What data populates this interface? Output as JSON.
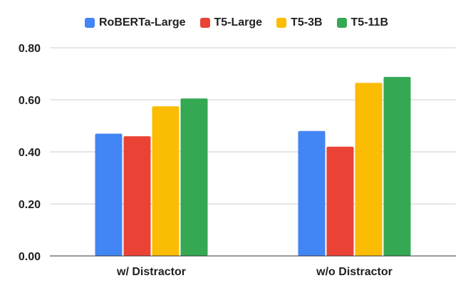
{
  "chart_data": {
    "type": "bar",
    "title": "",
    "xlabel": "",
    "ylabel": "",
    "categories": [
      "w/ Distractor",
      "w/o Distractor"
    ],
    "series": [
      {
        "name": "RoBERTa-Large",
        "color": "#4285f4",
        "values": [
          0.47,
          0.48
        ]
      },
      {
        "name": "T5-Large",
        "color": "#ea4335",
        "values": [
          0.46,
          0.42
        ]
      },
      {
        "name": "T5-3B",
        "color": "#fbbc04",
        "values": [
          0.575,
          0.665
        ]
      },
      {
        "name": "T5-11B",
        "color": "#34a853",
        "values": [
          0.605,
          0.688
        ]
      }
    ],
    "ylim": [
      0,
      0.8
    ],
    "yticks": [
      "0.00",
      "0.20",
      "0.40",
      "0.60",
      "0.80"
    ],
    "ytick_values": [
      0,
      0.2,
      0.4,
      0.6,
      0.8
    ],
    "grid": true,
    "legend_position": "top-center"
  }
}
